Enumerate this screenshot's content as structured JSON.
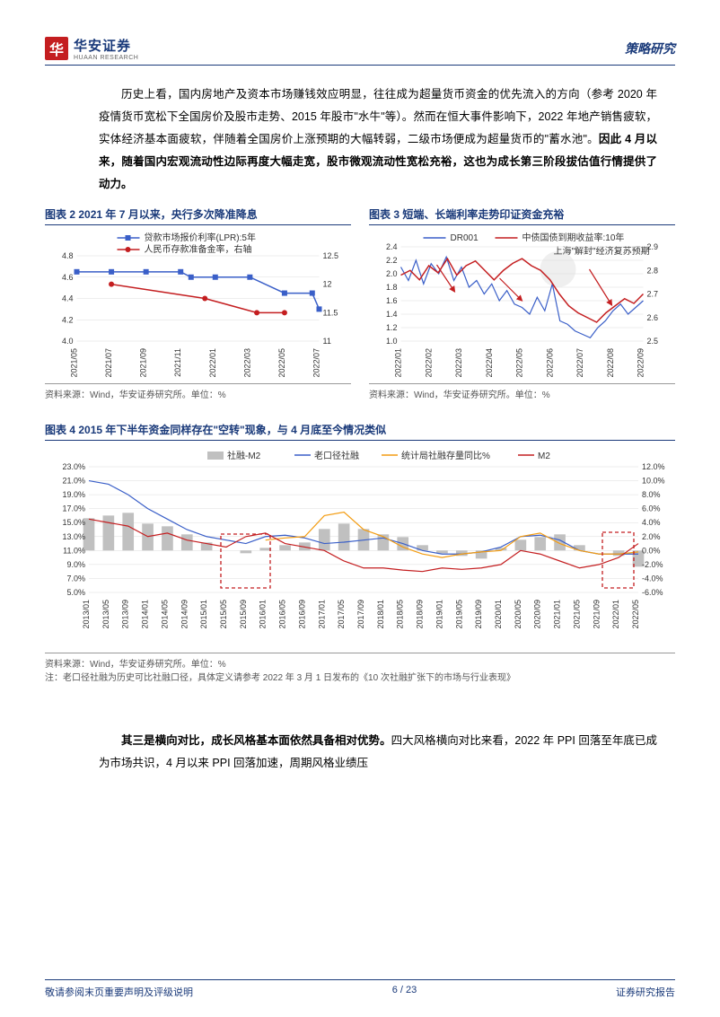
{
  "header": {
    "logo_cn": "华安证券",
    "logo_en": "HUAAN RESEARCH",
    "right": "策略研究"
  },
  "para1": "历史上看，国内房地产及资本市场赚钱效应明显，往往成为超量货币资金的优先流入的方向（参考 2020 年疫情货币宽松下全国房价及股市走势、2015 年股市\"水牛\"等）。然而在恒大事件影响下，2022 年地产销售疲软，实体经济基本面疲软，伴随着全国房价上涨预期的大幅转弱，二级市场便成为超量货币的\"蓄水池\"。",
  "para1_bold": "因此 4 月以来，随着国内宏观流动性边际再度大幅走宽，股市微观流动性宽松充裕，这也为成长第三阶段拔估值行情提供了动力。",
  "chart2": {
    "title": "图表 2  2021 年 7 月以来，央行多次降准降息",
    "legend1": "贷款市场报价利率(LPR):5年",
    "legend2": "人民币存款准备金率，右轴",
    "legend1_color": "#3a5fc8",
    "legend2_color": "#c41e20",
    "y1_min": 4.0,
    "y1_max": 4.8,
    "y1_ticks": [
      4.0,
      4.2,
      4.4,
      4.6,
      4.8
    ],
    "y2_min": 11,
    "y2_max": 12.5,
    "y2_ticks": [
      11,
      11.5,
      12,
      12.5
    ],
    "x_labels": [
      "2021/05",
      "2021/07",
      "2021/09",
      "2021/11",
      "2022/01",
      "2022/03",
      "2022/05",
      "2022/07"
    ],
    "lpr_points": [
      [
        0,
        4.65
      ],
      [
        1,
        4.65
      ],
      [
        2,
        4.65
      ],
      [
        3,
        4.65
      ],
      [
        3.3,
        4.6
      ],
      [
        4,
        4.6
      ],
      [
        5,
        4.6
      ],
      [
        6,
        4.45
      ],
      [
        6.8,
        4.45
      ],
      [
        7,
        4.3
      ]
    ],
    "rrr_points": [
      [
        1,
        12.0
      ],
      [
        3.7,
        11.75
      ],
      [
        5.2,
        11.5
      ],
      [
        6,
        11.5
      ]
    ],
    "source": "资料来源：Wind，华安证券研究所。单位：%"
  },
  "chart3": {
    "title": "图表 3  短端、长端利率走势印证资金充裕",
    "legend1": "DR001",
    "legend2": "中债国债到期收益率:10年",
    "legend1_color": "#3a5fc8",
    "legend2_color": "#c41e20",
    "annotation": "上海\"解封\"经济复苏预期",
    "y1_min": 1.0,
    "y1_max": 2.4,
    "y1_ticks": [
      1.0,
      1.2,
      1.4,
      1.6,
      1.8,
      2.0,
      2.2,
      2.4
    ],
    "y2_min": 2.5,
    "y2_max": 2.9,
    "y2_ticks": [
      2.5,
      2.6,
      2.7,
      2.8,
      2.9
    ],
    "x_labels": [
      "2022/01",
      "2022/02",
      "2022/03",
      "2022/04",
      "2022/05",
      "2022/06",
      "2022/07",
      "2022/08",
      "2022/09"
    ],
    "source": "资料来源：Wind，华安证券研究所。单位：%"
  },
  "chart4": {
    "title": "图表 4  2015 年下半年资金同样存在\"空转\"现象，与 4 月底至今情况类似",
    "legend": [
      {
        "label": "社融-M2",
        "color": "#c0c0c0",
        "type": "bar"
      },
      {
        "label": "老口径社融",
        "color": "#3a5fc8",
        "type": "line"
      },
      {
        "label": "统计局社融存量同比%",
        "color": "#f39c12",
        "type": "line"
      },
      {
        "label": "M2",
        "color": "#c41e20",
        "type": "line"
      }
    ],
    "y1_min": 5,
    "y1_max": 23,
    "y1_ticks": [
      "23.0%",
      "21.0%",
      "19.0%",
      "17.0%",
      "15.0%",
      "13.0%",
      "11.0%",
      "9.0%",
      "7.0%",
      "5.0%"
    ],
    "y2_ticks": [
      "12.0%",
      "10.0%",
      "8.0%",
      "6.0%",
      "4.0%",
      "2.0%",
      "0.0%",
      "-2.0%",
      "-4.0%",
      "-6.0%"
    ],
    "x_labels": [
      "2013/01",
      "2013/05",
      "2013/09",
      "2014/01",
      "2014/05",
      "2014/09",
      "2015/01",
      "2015/05",
      "2015/09",
      "2016/01",
      "2016/05",
      "2016/09",
      "2017/01",
      "2017/05",
      "2017/09",
      "2018/01",
      "2018/05",
      "2018/09",
      "2019/01",
      "2019/05",
      "2019/09",
      "2020/01",
      "2020/05",
      "2020/09",
      "2021/01",
      "2021/05",
      "2021/09",
      "2022/01",
      "2022/05"
    ],
    "source": "资料来源：Wind，华安证券研究所。单位：%",
    "note": "注：老口径社融为历史可比社融口径，具体定义请参考 2022 年 3 月 1 日发布的《10 次社融扩张下的市场与行业表现》"
  },
  "para2_bold": "其三是横向对比，成长风格基本面依然具备相对优势。",
  "para2": "四大风格横向对比来看，2022 年 PPI 回落至年底已成为市场共识，4 月以来 PPI 回落加速，周期风格业绩压",
  "footer": {
    "left": "敬请参阅末页重要声明及评级说明",
    "page": "6 / 23",
    "right": "证券研究报告"
  }
}
